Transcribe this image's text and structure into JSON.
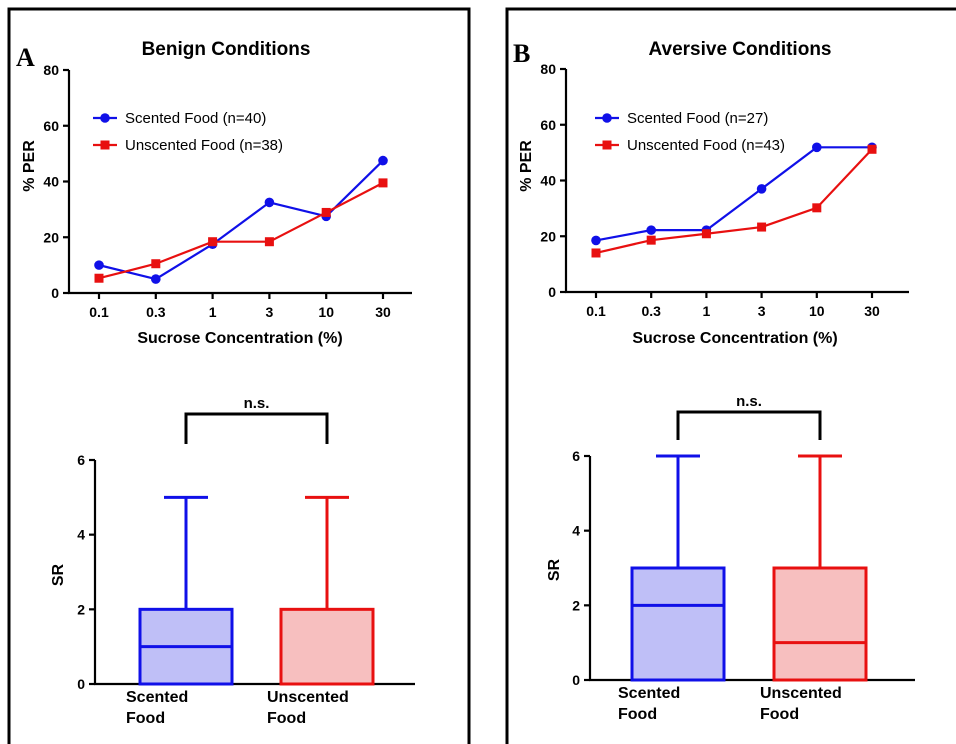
{
  "panels": [
    {
      "letter": "A",
      "line_chart": {
        "type": "line",
        "title": "Benign Conditions",
        "xlabel": "Sucrose Concentration (%)",
        "ylabel": "% PER",
        "categories": [
          "0.1",
          "0.3",
          "1",
          "3",
          "10",
          "30"
        ],
        "yticks": [
          "0",
          "20",
          "40",
          "60",
          "80"
        ],
        "ylim": [
          0,
          80
        ],
        "legend_placement": "top-left",
        "series": [
          {
            "name": "Scented Food (n=40)",
            "color": "#1010e8",
            "marker": "circle",
            "values": [
              10,
              5,
              17.5,
              32.5,
              27.5,
              47.5
            ]
          },
          {
            "name": "Unscented Food (n=38)",
            "color": "#e81010",
            "marker": "square",
            "values": [
              5.3,
              10.5,
              18.4,
              18.4,
              28.9,
              39.5
            ]
          }
        ]
      },
      "box_chart": {
        "type": "box",
        "ylabel": "SR",
        "yticks": [
          "0",
          "2",
          "4",
          "6"
        ],
        "ylim": [
          0,
          6
        ],
        "significance": "n.s.",
        "boxes": [
          {
            "label_line1": "Scented",
            "label_line2": "Food",
            "color": "#1010e8",
            "fill": "#bfbff7",
            "min": 0,
            "q1": 0,
            "median": 1,
            "q3": 2,
            "max": 5
          },
          {
            "label_line1": "Unscented",
            "label_line2": "Food",
            "color": "#e81010",
            "fill": "#f7bfbf",
            "min": 0,
            "q1": 0,
            "median": 0,
            "q3": 2,
            "max": 5
          }
        ]
      }
    },
    {
      "letter": "B",
      "line_chart": {
        "type": "line",
        "title": "Aversive Conditions",
        "xlabel": "Sucrose Concentration (%)",
        "ylabel": "% PER",
        "categories": [
          "0.1",
          "0.3",
          "1",
          "3",
          "10",
          "30"
        ],
        "yticks": [
          "0",
          "20",
          "40",
          "60",
          "80"
        ],
        "ylim": [
          0,
          80
        ],
        "legend_placement": "top-left",
        "series": [
          {
            "name": "Scented Food (n=27)",
            "color": "#1010e8",
            "marker": "circle",
            "values": [
              18.5,
              22.2,
              22.2,
              37,
              51.9,
              51.9
            ]
          },
          {
            "name": "Unscented Food (n=43)",
            "color": "#e81010",
            "marker": "square",
            "values": [
              14,
              18.6,
              20.9,
              23.3,
              30.2,
              51.2
            ]
          }
        ]
      },
      "box_chart": {
        "type": "box",
        "ylabel": "SR",
        "yticks": [
          "0",
          "2",
          "4",
          "6"
        ],
        "ylim": [
          0,
          6
        ],
        "significance": "n.s.",
        "boxes": [
          {
            "label_line1": "Scented",
            "label_line2": "Food",
            "color": "#1010e8",
            "fill": "#bfbff7",
            "min": 0,
            "q1": 0,
            "median": 2,
            "q3": 3,
            "max": 6
          },
          {
            "label_line1": "Unscented",
            "label_line2": "Food",
            "color": "#e81010",
            "fill": "#f7bfbf",
            "min": 0,
            "q1": 0,
            "median": 1,
            "q3": 3,
            "max": 6
          }
        ]
      }
    }
  ],
  "chart_data": [
    {
      "type": "line",
      "title": "Benign Conditions",
      "xlabel": "Sucrose Concentration (%)",
      "ylabel": "% PER",
      "categories": [
        "0.1",
        "0.3",
        "1",
        "3",
        "10",
        "30"
      ],
      "ylim": [
        0,
        80
      ],
      "series": [
        {
          "name": "Scented Food (n=40)",
          "values": [
            10,
            5,
            17.5,
            32.5,
            27.5,
            47.5
          ]
        },
        {
          "name": "Unscented Food (n=38)",
          "values": [
            5.3,
            10.5,
            18.4,
            18.4,
            28.9,
            39.5
          ]
        }
      ]
    },
    {
      "type": "box",
      "ylabel": "SR",
      "ylim": [
        0,
        6
      ],
      "categories": [
        "Scented Food",
        "Unscented Food"
      ],
      "annotation": "n.s.",
      "boxes": [
        {
          "min": 0,
          "q1": 0,
          "median": 1,
          "q3": 2,
          "max": 5
        },
        {
          "min": 0,
          "q1": 0,
          "median": 0,
          "q3": 2,
          "max": 5
        }
      ]
    },
    {
      "type": "line",
      "title": "Aversive Conditions",
      "xlabel": "Sucrose Concentration (%)",
      "ylabel": "% PER",
      "categories": [
        "0.1",
        "0.3",
        "1",
        "3",
        "10",
        "30"
      ],
      "ylim": [
        0,
        80
      ],
      "series": [
        {
          "name": "Scented Food (n=27)",
          "values": [
            18.5,
            22.2,
            22.2,
            37,
            51.9,
            51.9
          ]
        },
        {
          "name": "Unscented Food (n=43)",
          "values": [
            14,
            18.6,
            20.9,
            23.3,
            30.2,
            51.2
          ]
        }
      ]
    },
    {
      "type": "box",
      "ylabel": "SR",
      "ylim": [
        0,
        6
      ],
      "categories": [
        "Scented Food",
        "Unscented Food"
      ],
      "annotation": "n.s.",
      "boxes": [
        {
          "min": 0,
          "q1": 0,
          "median": 2,
          "q3": 3,
          "max": 6
        },
        {
          "min": 0,
          "q1": 0,
          "median": 1,
          "q3": 3,
          "max": 6
        }
      ]
    }
  ]
}
